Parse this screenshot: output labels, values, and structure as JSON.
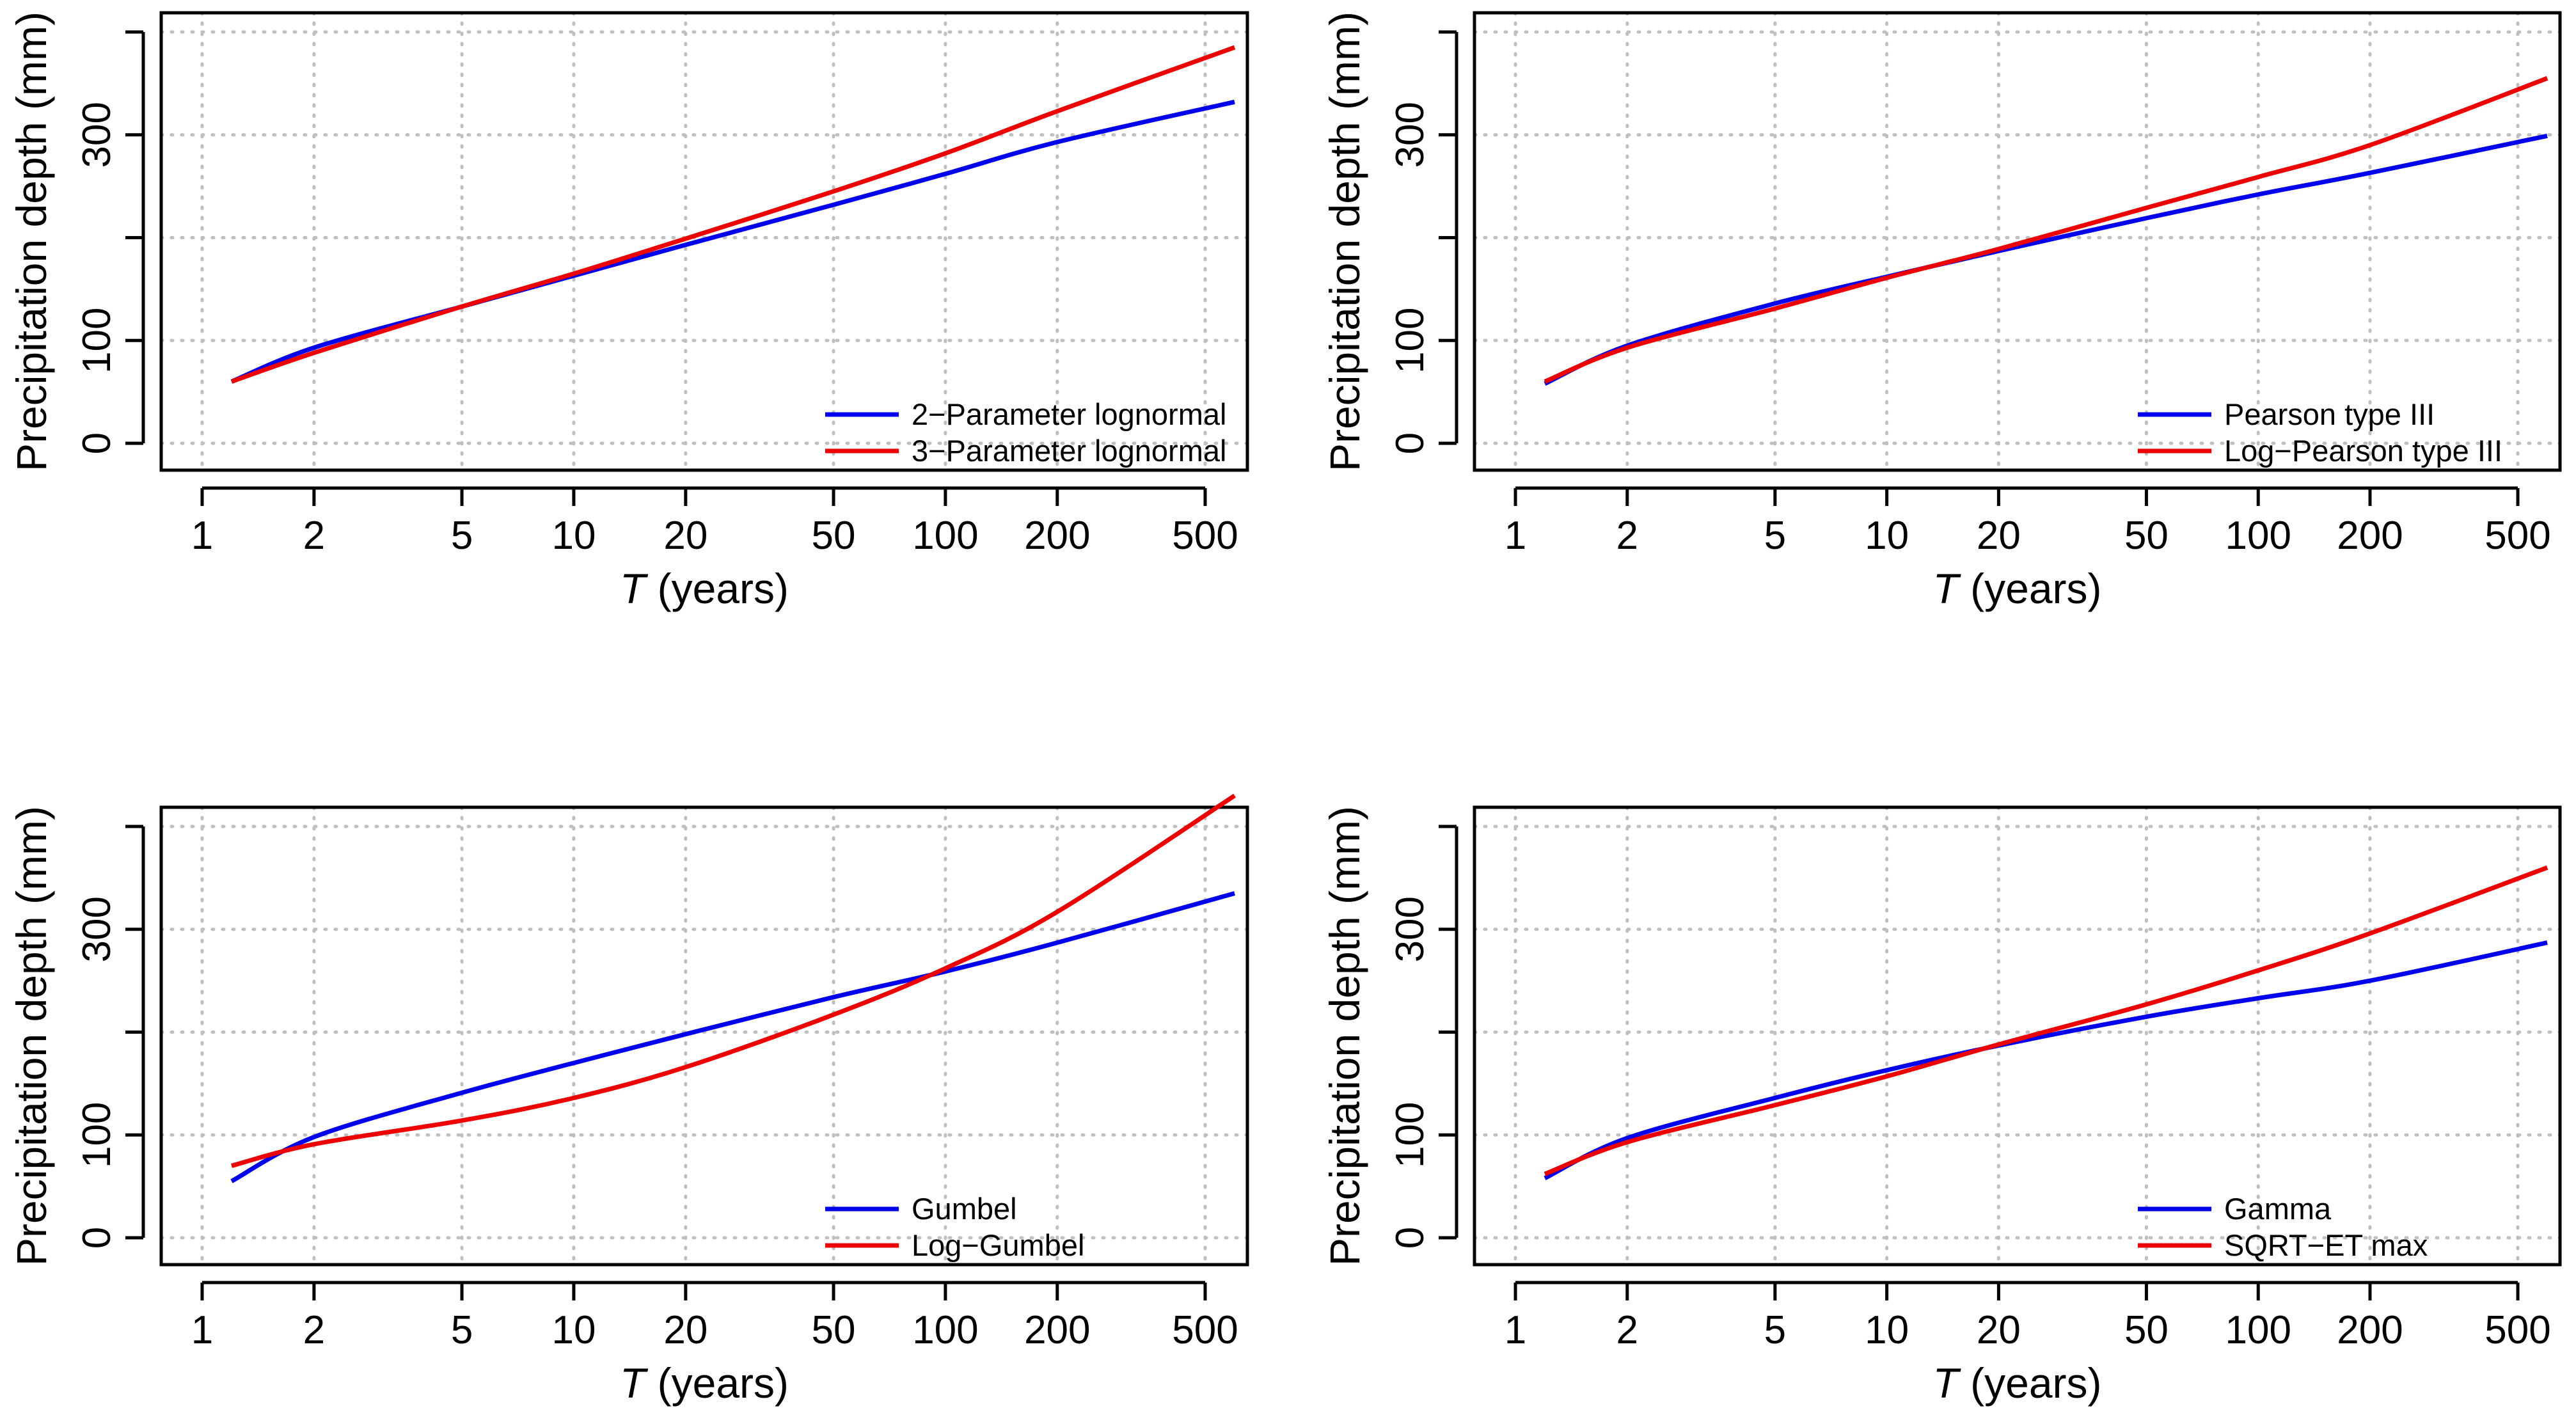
{
  "figure": {
    "colors": {
      "blue": "#0000ee",
      "red": "#ee0000",
      "grid": "#bfbfbf",
      "axis": "#000000"
    }
  },
  "chart_data": [
    {
      "type": "line",
      "x_scale": "log",
      "xlabel_italic": "T",
      "xlabel_rest": " (years)",
      "ylabel": "Precipitation depth (mm)",
      "xlim": [
        1.2,
        600
      ],
      "ylim": [
        0,
        400
      ],
      "x_ticks": [
        1,
        2,
        5,
        10,
        20,
        50,
        100,
        200,
        500
      ],
      "y_tick_labels": [
        0,
        100,
        300
      ],
      "y_ticks_all": [
        0,
        100,
        200,
        300,
        400
      ],
      "legend_position": "bottom-right",
      "series": [
        {
          "name": "2−Parameter lognormal",
          "color": "#0000ee",
          "x": [
            1.2,
            2,
            5,
            10,
            20,
            50,
            100,
            200,
            600
          ],
          "y": [
            60,
            93,
            133,
            163,
            193,
            232,
            262,
            293,
            332
          ]
        },
        {
          "name": "3−Parameter lognormal",
          "color": "#ee0000",
          "x": [
            1.2,
            2,
            5,
            10,
            20,
            50,
            100,
            200,
            600
          ],
          "y": [
            60,
            88,
            133,
            165,
            199,
            245,
            282,
            323,
            385
          ]
        }
      ]
    },
    {
      "type": "line",
      "x_scale": "log",
      "xlabel_italic": "T",
      "xlabel_rest": " (years)",
      "ylabel": "Precipitation depth (mm)",
      "xlim": [
        1.2,
        600
      ],
      "ylim": [
        0,
        400
      ],
      "x_ticks": [
        1,
        2,
        5,
        10,
        20,
        50,
        100,
        200,
        500
      ],
      "y_tick_labels": [
        0,
        100,
        300
      ],
      "y_ticks_all": [
        0,
        100,
        200,
        300,
        400
      ],
      "legend_position": "bottom-right",
      "series": [
        {
          "name": "Pearson type III",
          "color": "#0000ee",
          "x": [
            1.2,
            2,
            5,
            10,
            20,
            50,
            100,
            200,
            600
          ],
          "y": [
            58,
            95,
            136,
            162,
            187,
            219,
            242,
            263,
            299
          ]
        },
        {
          "name": "Log−Pearson type III",
          "color": "#ee0000",
          "x": [
            1.2,
            2,
            5,
            10,
            20,
            50,
            100,
            200,
            600
          ],
          "y": [
            60,
            93,
            131,
            161,
            189,
            229,
            259,
            290,
            355
          ]
        }
      ]
    },
    {
      "type": "line",
      "x_scale": "log",
      "xlabel_italic": "T",
      "xlabel_rest": " (years)",
      "ylabel": "Precipitation depth (mm)",
      "xlim": [
        1.2,
        600
      ],
      "ylim": [
        0,
        400
      ],
      "x_ticks": [
        1,
        2,
        5,
        10,
        20,
        50,
        100,
        200,
        500
      ],
      "y_tick_labels": [
        0,
        100,
        300
      ],
      "y_ticks_all": [
        0,
        100,
        200,
        300,
        400
      ],
      "legend_position": "bottom-right",
      "series": [
        {
          "name": "Gumbel",
          "color": "#0000ee",
          "x": [
            1.2,
            2,
            5,
            10,
            20,
            50,
            100,
            200,
            600
          ],
          "y": [
            55,
            98,
            141,
            170,
            198,
            234,
            259,
            287,
            335
          ]
        },
        {
          "name": "Log−Gumbel",
          "color": "#ee0000",
          "x": [
            1.2,
            2,
            5,
            10,
            20,
            50,
            100,
            200,
            600
          ],
          "y": [
            70,
            91,
            114,
            136,
            166,
            217,
            262,
            317,
            430
          ]
        }
      ]
    },
    {
      "type": "line",
      "x_scale": "log",
      "xlabel_italic": "T",
      "xlabel_rest": " (years)",
      "ylabel": "Precipitation depth (mm)",
      "xlim": [
        1.2,
        600
      ],
      "ylim": [
        0,
        400
      ],
      "x_ticks": [
        1,
        2,
        5,
        10,
        20,
        50,
        100,
        200,
        500
      ],
      "y_tick_labels": [
        0,
        100,
        300
      ],
      "y_ticks_all": [
        0,
        100,
        200,
        300,
        400
      ],
      "legend_position": "bottom-right",
      "series": [
        {
          "name": "Gamma",
          "color": "#0000ee",
          "x": [
            1.2,
            2,
            5,
            10,
            20,
            50,
            100,
            200,
            600
          ],
          "y": [
            58,
            97,
            136,
            163,
            187,
            215,
            233,
            250,
            287
          ]
        },
        {
          "name": "SQRT−ET max",
          "color": "#ee0000",
          "x": [
            1.2,
            2,
            5,
            10,
            20,
            50,
            100,
            200,
            600
          ],
          "y": [
            62,
            93,
            129,
            157,
            188,
            227,
            260,
            296,
            360
          ]
        }
      ]
    }
  ]
}
